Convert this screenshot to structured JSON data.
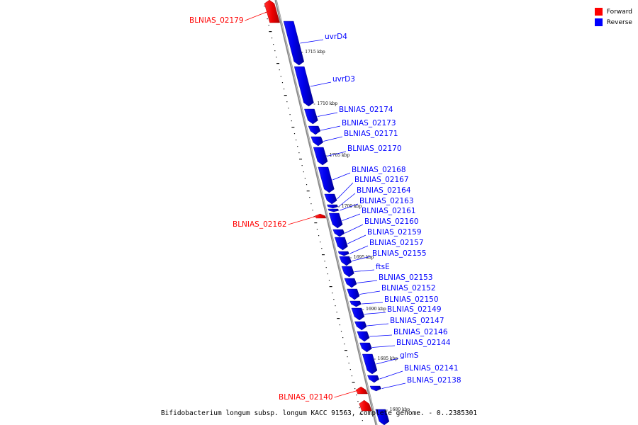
{
  "legend": {
    "forward": {
      "label": "Forward",
      "color": "#ff0000"
    },
    "reverse": {
      "label": "Reverse",
      "color": "#0000ff"
    }
  },
  "caption": "Bifidobacterium longum subsp. longum KACC 91563, complete genome. - 0..2385301",
  "ticks": [
    "1715 kbp",
    "1710 kbp",
    "1705 kbp",
    "1700 kbp",
    "1695 kbp",
    "1690 kbp",
    "1685 kbp",
    "1680 kbp"
  ],
  "genes": [
    {
      "name": "BLNIAS_02179",
      "strand": "forward"
    },
    {
      "name": "uvrD4",
      "strand": "reverse"
    },
    {
      "name": "uvrD3",
      "strand": "reverse"
    },
    {
      "name": "BLNIAS_02174",
      "strand": "reverse"
    },
    {
      "name": "BLNIAS_02173",
      "strand": "reverse"
    },
    {
      "name": "BLNIAS_02171",
      "strand": "reverse"
    },
    {
      "name": "BLNIAS_02170",
      "strand": "reverse"
    },
    {
      "name": "BLNIAS_02168",
      "strand": "reverse"
    },
    {
      "name": "BLNIAS_02167",
      "strand": "reverse"
    },
    {
      "name": "BLNIAS_02164",
      "strand": "reverse"
    },
    {
      "name": "BLNIAS_02163",
      "strand": "reverse"
    },
    {
      "name": "BLNIAS_02161",
      "strand": "reverse"
    },
    {
      "name": "BLNIAS_02162",
      "strand": "forward"
    },
    {
      "name": "BLNIAS_02160",
      "strand": "reverse"
    },
    {
      "name": "BLNIAS_02159",
      "strand": "reverse"
    },
    {
      "name": "BLNIAS_02157",
      "strand": "reverse"
    },
    {
      "name": "BLNIAS_02155",
      "strand": "reverse"
    },
    {
      "name": "ftsE",
      "strand": "reverse"
    },
    {
      "name": "BLNIAS_02153",
      "strand": "reverse"
    },
    {
      "name": "BLNIAS_02152",
      "strand": "reverse"
    },
    {
      "name": "BLNIAS_02150",
      "strand": "reverse"
    },
    {
      "name": "BLNIAS_02149",
      "strand": "reverse"
    },
    {
      "name": "BLNIAS_02147",
      "strand": "reverse"
    },
    {
      "name": "BLNIAS_02146",
      "strand": "reverse"
    },
    {
      "name": "BLNIAS_02144",
      "strand": "reverse"
    },
    {
      "name": "glmS",
      "strand": "reverse"
    },
    {
      "name": "BLNIAS_02141",
      "strand": "reverse"
    },
    {
      "name": "BLNIAS_02138",
      "strand": "reverse"
    },
    {
      "name": "BLNIAS_02140",
      "strand": "forward"
    }
  ]
}
